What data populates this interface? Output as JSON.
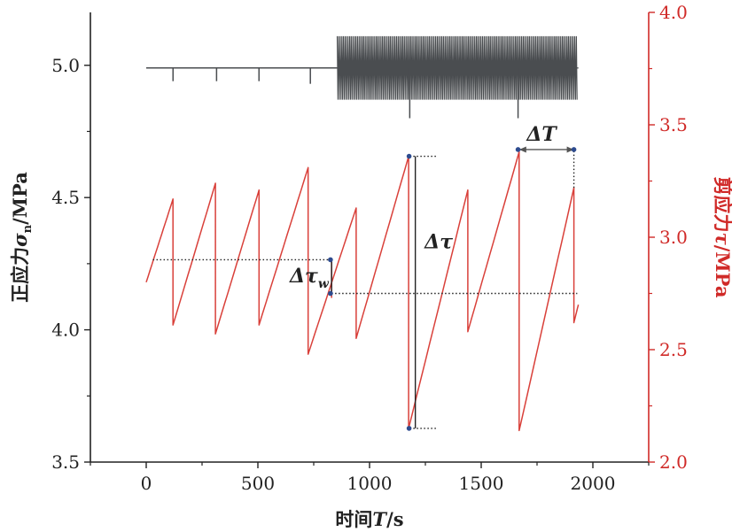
{
  "chart_data": {
    "type": "line",
    "xlabel": {
      "prefix": "时间",
      "var": "T",
      "unit": "/s"
    },
    "ylabel_left": {
      "prefix": "正应力",
      "var": "σ",
      "sub": "n",
      "unit": "/MPa"
    },
    "ylabel_right": {
      "prefix": "剪应力",
      "var": "τ",
      "unit": "/MPa"
    },
    "xlim": [
      -250,
      2250
    ],
    "ylim_left": [
      3.5,
      5.2
    ],
    "ylim_right": [
      2.0,
      4.0
    ],
    "x_ticks": [
      0,
      500,
      1000,
      1500,
      2000
    ],
    "x_tick_labels": [
      "0",
      "500",
      "1000",
      "1500",
      "2000"
    ],
    "y_left_ticks": [
      3.5,
      4.0,
      4.5,
      5.0
    ],
    "y_left_tick_labels": [
      "3.5",
      "4.0",
      "4.5",
      "5.0"
    ],
    "y_right_ticks": [
      2.0,
      2.5,
      3.0,
      3.5,
      4.0
    ],
    "y_right_tick_labels": [
      "2.0",
      "2.5",
      "3.0",
      "3.5",
      "4.0"
    ],
    "colors": {
      "normal": "#4a4d50",
      "shear": "#d9403a",
      "right_axis": "#d02a28",
      "marker": "#2d4b8f"
    },
    "series": [
      {
        "axis": "left",
        "base": 4.99,
        "oscillation": {
          "x_start": 855,
          "x_end": 1930,
          "low": 4.87,
          "high": 5.11,
          "period": 7
        },
        "spikes": [
          {
            "x": 120,
            "y": 4.94
          },
          {
            "x": 315,
            "y": 4.94
          },
          {
            "x": 505,
            "y": 4.94
          },
          {
            "x": 735,
            "y": 4.93
          },
          {
            "x": 1180,
            "y": 4.8
          },
          {
            "x": 1665,
            "y": 4.8
          }
        ]
      },
      {
        "axis": "right",
        "cycles": [
          {
            "x0": 0,
            "y0": 2.8,
            "x1": 120,
            "y1": 3.17
          },
          {
            "x0": 120,
            "y0": 2.61,
            "x1": 310,
            "y1": 3.24
          },
          {
            "x0": 310,
            "y0": 2.57,
            "x1": 505,
            "y1": 3.21
          },
          {
            "x0": 505,
            "y0": 2.61,
            "x1": 725,
            "y1": 3.31
          },
          {
            "x0": 725,
            "y0": 2.48,
            "x1": 940,
            "y1": 3.13
          },
          {
            "x0": 940,
            "y0": 2.55,
            "x1": 1175,
            "y1": 3.36
          },
          {
            "x0": 1175,
            "y0": 2.15,
            "x1": 1440,
            "y1": 3.21
          },
          {
            "x0": 1440,
            "y0": 2.58,
            "x1": 1670,
            "y1": 3.38
          },
          {
            "x0": 1670,
            "y0": 2.14,
            "x1": 1915,
            "y1": 3.22
          },
          {
            "x0": 1915,
            "y0": 2.62,
            "x1": 1935,
            "y1": 2.7
          }
        ],
        "extra_drops": [
          {
            "x": 830,
            "top": 2.9,
            "bottom": 2.73
          }
        ]
      }
    ],
    "annotations": [
      {
        "type": "hline",
        "x0": 30,
        "x1": 830,
        "y": 2.9
      },
      {
        "type": "hline",
        "x0": 830,
        "x1": 1930,
        "y": 2.75
      },
      {
        "type": "vline",
        "x": 830,
        "y0": 2.75,
        "y1": 2.9
      },
      {
        "type": "label",
        "text": "Δτ",
        "sub": "w",
        "x": 730,
        "y": 2.8
      },
      {
        "type": "marker",
        "x": 825,
        "y": 2.9
      },
      {
        "type": "marker",
        "x": 825,
        "y": 2.75
      },
      {
        "type": "vline",
        "x": 1205,
        "y0": 2.15,
        "y1": 3.36
      },
      {
        "type": "hline_dotted",
        "x0": 1180,
        "x1": 1300,
        "y": 3.36
      },
      {
        "type": "hline_dotted",
        "x0": 1180,
        "x1": 1300,
        "y": 2.15
      },
      {
        "type": "marker",
        "x": 1177,
        "y": 3.36
      },
      {
        "type": "marker",
        "x": 1177,
        "y": 2.15
      },
      {
        "type": "label",
        "text": "Δτ",
        "x": 1310,
        "y": 2.95
      },
      {
        "type": "arrow_line",
        "x0": 1670,
        "x1": 1915,
        "y": 3.39
      },
      {
        "type": "vline",
        "x": 1915,
        "y0": 3.22,
        "y1": 3.39
      },
      {
        "type": "marker",
        "x": 1665,
        "y": 3.39
      },
      {
        "type": "marker",
        "x": 1915,
        "y": 3.39
      },
      {
        "type": "label",
        "text": "ΔT",
        "x": 1770,
        "y": 3.43
      }
    ]
  }
}
